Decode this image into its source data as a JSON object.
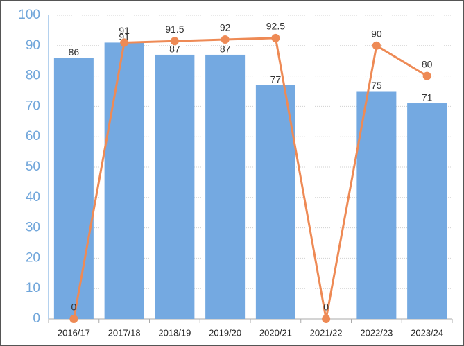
{
  "chart_data": {
    "type": "bar",
    "categories": [
      "2016/17",
      "2017/18",
      "2018/19",
      "2019/20",
      "2020/21",
      "2021/22",
      "2022/23",
      "2023/24"
    ],
    "series": [
      {
        "type": "bar",
        "color": "#74a9e1",
        "values": [
          86,
          91,
          87,
          87,
          77,
          null,
          75,
          71
        ]
      },
      {
        "type": "line",
        "color": "#ee8a55",
        "values": [
          0,
          91,
          91.5,
          92,
          92.5,
          0,
          90,
          80
        ]
      }
    ],
    "ylim": [
      0,
      100
    ],
    "yticks": [
      0,
      10,
      20,
      30,
      40,
      50,
      60,
      70,
      80,
      90,
      100
    ],
    "grid": true
  }
}
